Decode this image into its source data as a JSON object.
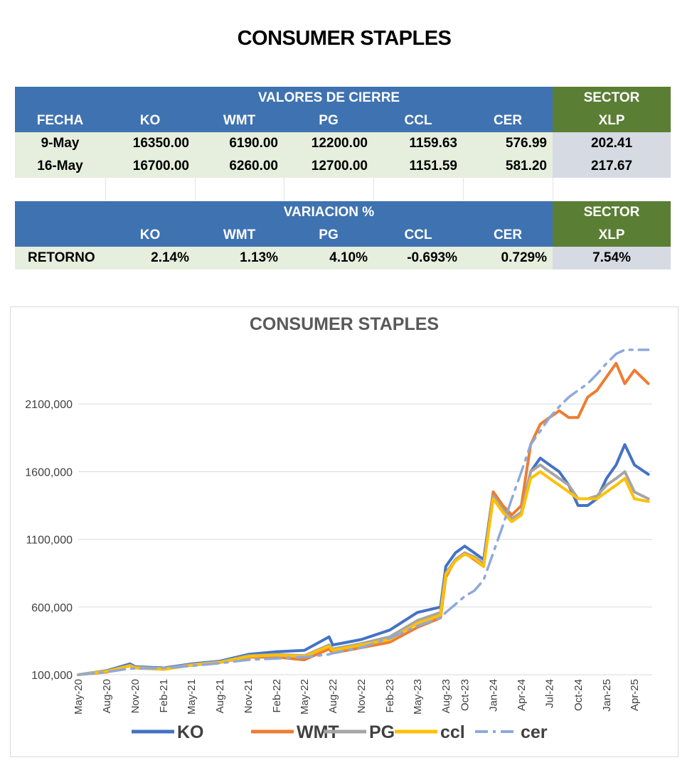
{
  "page_title": "CONSUMER STAPLES",
  "table1": {
    "group_header": "VALORES DE CIERRE",
    "sector_top": "SECTOR",
    "columns": [
      "FECHA",
      "KO",
      "WMT",
      "PG",
      "CCL",
      "CER",
      "XLP"
    ],
    "rows": [
      [
        "9-May",
        "16350.00",
        "6190.00",
        "12200.00",
        "1159.63",
        "576.99",
        "202.41"
      ],
      [
        "16-May",
        "16700.00",
        "6260.00",
        "12700.00",
        "1151.59",
        "581.20",
        "217.67"
      ]
    ]
  },
  "table2": {
    "group_header": "VARIACION %",
    "sector_top": "SECTOR",
    "columns": [
      "",
      "KO",
      "WMT",
      "PG",
      "CCL",
      "CER",
      "XLP"
    ],
    "row": [
      "RETORNO",
      "2.14%",
      "1.13%",
      "4.10%",
      "-0.693%",
      "0.729%",
      "7.54%"
    ]
  },
  "colors": {
    "header_blue": "#3f72b0",
    "sector_green": "#5b7e35",
    "row_green": "#e6eedd",
    "xlp_gray": "#d6dae2"
  },
  "chart_data": {
    "type": "line",
    "title": "CONSUMER STAPLES",
    "ylim": [
      100000,
      2500000
    ],
    "yticks": [
      100000,
      600000,
      1100000,
      1600000,
      2100000
    ],
    "ytick_labels": [
      "100,000",
      "600,000",
      "1100,000",
      "1600,000",
      "2100,000"
    ],
    "xticks": [
      "May-20",
      "Aug-20",
      "Nov-20",
      "Feb-21",
      "May-21",
      "Aug-21",
      "Nov-21",
      "Feb-22",
      "May-22",
      "Aug-22",
      "Nov-22",
      "Feb-23",
      "May-23",
      "Aug-23",
      "Oct-23",
      "Jan-24",
      "Apr-24",
      "Jul-24",
      "Oct-24",
      "Jan-25",
      "Apr-25"
    ],
    "xtick_dates": [
      "2020-05-01",
      "2020-08-01",
      "2020-11-01",
      "2021-02-01",
      "2021-05-01",
      "2021-08-01",
      "2021-11-01",
      "2022-02-01",
      "2022-05-01",
      "2022-08-01",
      "2022-11-01",
      "2023-02-01",
      "2023-05-01",
      "2023-08-01",
      "2023-10-01",
      "2024-01-01",
      "2024-04-01",
      "2024-07-01",
      "2024-10-01",
      "2025-01-01",
      "2025-04-01"
    ],
    "x": [
      "2020-05-01",
      "2020-08-01",
      "2020-10-15",
      "2020-11-01",
      "2021-02-01",
      "2021-05-01",
      "2021-08-01",
      "2021-11-01",
      "2022-02-01",
      "2022-05-01",
      "2022-07-20",
      "2022-08-01",
      "2022-11-01",
      "2023-02-01",
      "2023-05-01",
      "2023-07-15",
      "2023-08-01",
      "2023-09-01",
      "2023-10-01",
      "2023-11-01",
      "2023-12-01",
      "2024-01-01",
      "2024-02-01",
      "2024-03-01",
      "2024-04-01",
      "2024-05-01",
      "2024-06-01",
      "2024-07-01",
      "2024-08-01",
      "2024-09-01",
      "2024-10-01",
      "2024-11-01",
      "2024-12-01",
      "2025-01-01",
      "2025-02-01",
      "2025-03-01",
      "2025-04-01",
      "2025-05-16"
    ],
    "series": [
      {
        "name": "KO",
        "color": "#4472c4",
        "dash": "solid",
        "values": [
          100000,
          130000,
          180000,
          160000,
          150000,
          180000,
          200000,
          250000,
          270000,
          280000,
          380000,
          320000,
          360000,
          430000,
          560000,
          600000,
          900000,
          1000000,
          1050000,
          1000000,
          950000,
          1450000,
          1350000,
          1250000,
          1300000,
          1600000,
          1700000,
          1650000,
          1600000,
          1500000,
          1350000,
          1350000,
          1400000,
          1550000,
          1650000,
          1800000,
          1650000,
          1580000
        ]
      },
      {
        "name": "WMT",
        "color": "#ed7d31",
        "dash": "solid",
        "values": [
          100000,
          120000,
          170000,
          150000,
          140000,
          170000,
          190000,
          230000,
          230000,
          210000,
          290000,
          260000,
          300000,
          340000,
          450000,
          520000,
          820000,
          950000,
          1000000,
          950000,
          900000,
          1450000,
          1350000,
          1280000,
          1350000,
          1800000,
          1950000,
          2000000,
          2050000,
          2000000,
          2000000,
          2150000,
          2200000,
          2300000,
          2400000,
          2250000,
          2350000,
          2250000
        ]
      },
      {
        "name": "PG",
        "color": "#a5a5a5",
        "dash": "solid",
        "values": [
          100000,
          125000,
          170000,
          155000,
          145000,
          175000,
          195000,
          240000,
          250000,
          240000,
          320000,
          290000,
          330000,
          380000,
          500000,
          560000,
          850000,
          950000,
          1000000,
          970000,
          920000,
          1420000,
          1320000,
          1250000,
          1300000,
          1600000,
          1650000,
          1600000,
          1550000,
          1500000,
          1400000,
          1400000,
          1420000,
          1500000,
          1550000,
          1600000,
          1450000,
          1400000
        ]
      },
      {
        "name": "ccl",
        "color": "#ffc000",
        "dash": "solid",
        "values": [
          100000,
          125000,
          165000,
          150000,
          140000,
          170000,
          190000,
          235000,
          245000,
          235000,
          310000,
          280000,
          320000,
          360000,
          480000,
          540000,
          840000,
          940000,
          990000,
          960000,
          900000,
          1400000,
          1300000,
          1230000,
          1280000,
          1550000,
          1600000,
          1550000,
          1500000,
          1450000,
          1400000,
          1400000,
          1400000,
          1450000,
          1500000,
          1550000,
          1400000,
          1380000
        ]
      },
      {
        "name": "cer",
        "color": "#8ea9db",
        "dash": "dashdot",
        "values": [
          100000,
          120000,
          145000,
          145000,
          150000,
          165000,
          185000,
          210000,
          220000,
          230000,
          250000,
          260000,
          300000,
          370000,
          460000,
          520000,
          560000,
          620000,
          680000,
          720000,
          800000,
          1000000,
          1200000,
          1400000,
          1600000,
          1800000,
          1900000,
          2000000,
          2080000,
          2150000,
          2200000,
          2250000,
          2320000,
          2400000,
          2470000,
          2500000,
          2500000,
          2500000
        ]
      }
    ],
    "legend": [
      "KO",
      "WMT",
      "PG",
      "ccl",
      "cer"
    ],
    "legend_position": "bottom",
    "grid": "horizontal"
  }
}
